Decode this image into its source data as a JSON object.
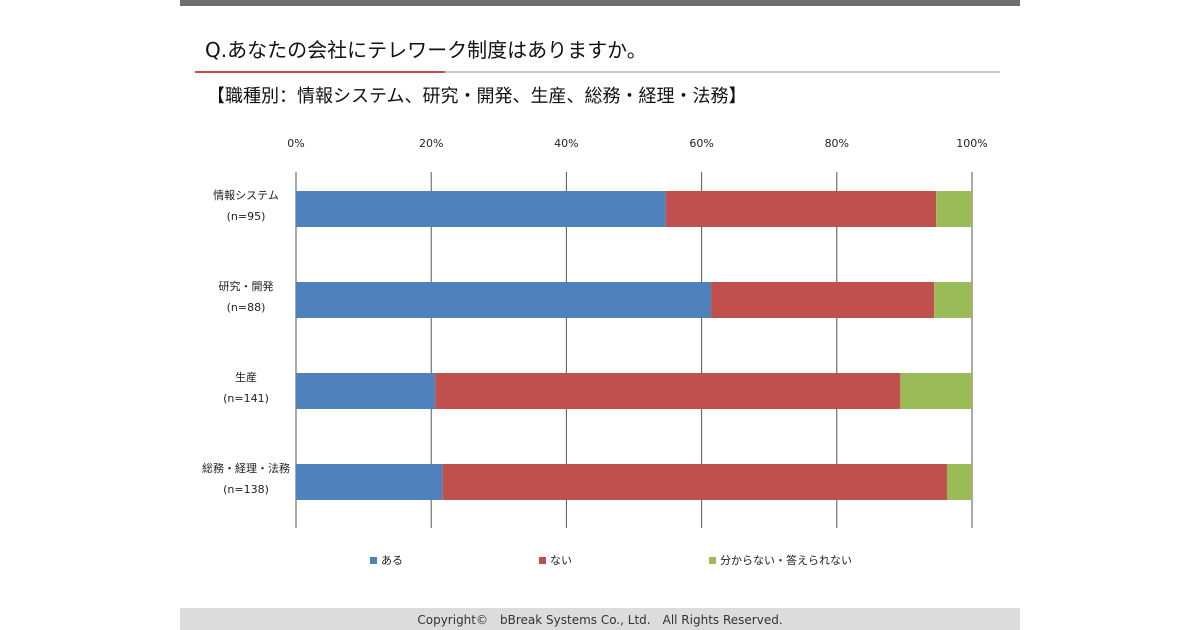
{
  "question": "Q.あなたの会社にテレワーク制度はありますか。",
  "subtitle": "【職種別：情報システム、研究・開発、生産、総務・経理・法務】",
  "footer": "Copyright©　bBreak Systems Co., Ltd.　All Rights Reserved.",
  "colors": {
    "series_1": "#4f81bd",
    "series_2": "#c0504d",
    "series_3": "#9bbb59",
    "grid": "#555555",
    "accent_rule": "#d04848"
  },
  "chart_data": {
    "type": "bar",
    "orientation": "horizontal",
    "stacked": "percent",
    "title": "【職種別：情報システム、研究・開発、生産、総務・経理・法務】",
    "xlim": [
      0,
      100
    ],
    "x_ticks": [
      "0%",
      "20%",
      "40%",
      "60%",
      "80%",
      "100%"
    ],
    "grid": true,
    "legend_position": "bottom",
    "categories": [
      {
        "name": "情報システム",
        "n": "(n=95)"
      },
      {
        "name": "研究・開発",
        "n": "(n=88)"
      },
      {
        "name": "生産",
        "n": "(n=141)"
      },
      {
        "name": "総務・経理・法務",
        "n": "(n=138)"
      }
    ],
    "series": [
      {
        "name": "ある",
        "color": "#4f81bd",
        "values": [
          54.7,
          61.4,
          20.6,
          21.7
        ]
      },
      {
        "name": "ない",
        "color": "#c0504d",
        "values": [
          40.0,
          33.0,
          68.8,
          74.6
        ]
      },
      {
        "name": "分からない・答えられない",
        "color": "#9bbb59",
        "values": [
          5.3,
          5.6,
          10.6,
          3.7
        ]
      }
    ]
  }
}
